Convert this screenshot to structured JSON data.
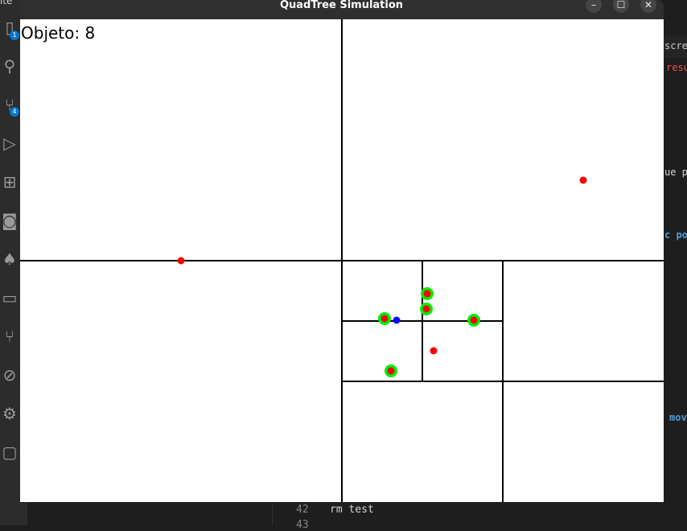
{
  "window": {
    "title": "QuadTree Simulation",
    "buttons": {
      "minimize": "–",
      "maximize": "☐",
      "close": "✕"
    }
  },
  "canvas": {
    "label": "Objeto: 8",
    "colors": {
      "background": "#ffffff",
      "lines": "#000000",
      "point": "#ff0000",
      "highlight": "#00ee00",
      "query": "#0000ff"
    }
  },
  "background_editor": {
    "topleft_text": "ite",
    "right_fragments": [
      "scree",
      "resul",
      "ue p",
      "c po",
      "mov"
    ],
    "terminal": {
      "line_number": "42",
      "line_text": "rm test",
      "next_line_number": "43"
    },
    "activity_badges": [
      "1",
      "4"
    ],
    "activity_icons": [
      "files-icon",
      "search-icon",
      "source-control-icon",
      "run-debug-icon",
      "extensions-icon",
      "remote-icon",
      "mongodb-icon",
      "folder-icon",
      "git-graph-icon",
      "git-lens-icon",
      "settings-sync-icon",
      "chat-icon"
    ]
  }
}
